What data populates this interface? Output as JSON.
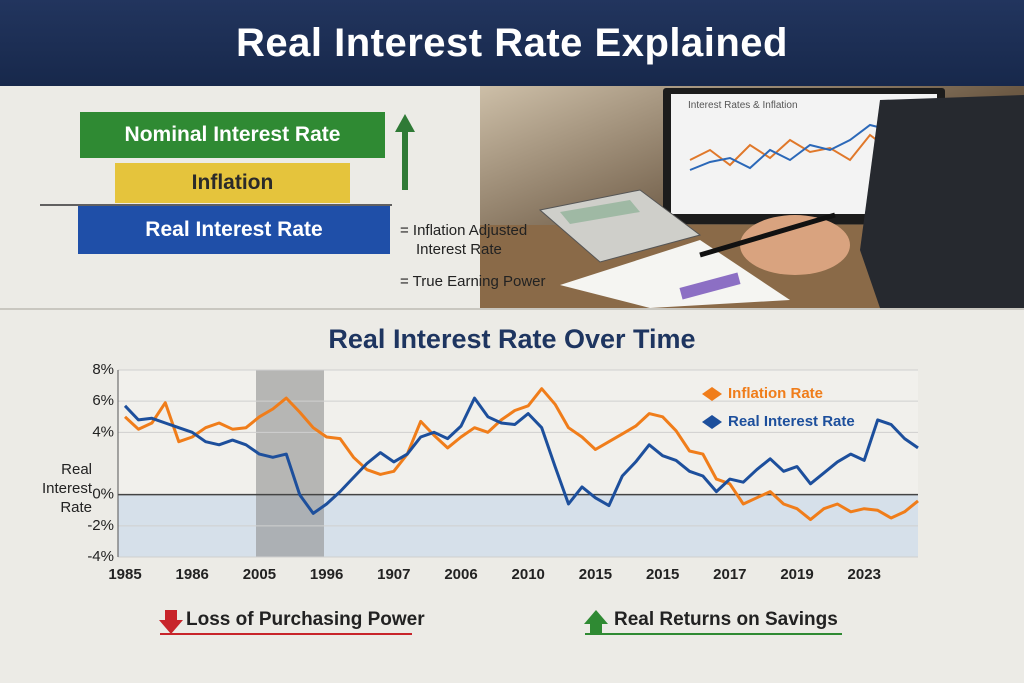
{
  "header": {
    "title": "Real Interest Rate Explained"
  },
  "diagram": {
    "layers": [
      "Nominal Interest Rate",
      "Inflation",
      "Real Interest Rate"
    ],
    "equations": [
      "= Inflation Adjusted Interest Rate",
      "= True Earning Power"
    ]
  },
  "photo": {
    "screen_title": "Interest Rates & Inflation"
  },
  "chart_data": {
    "type": "line",
    "title": "Real Interest Rate Over Time",
    "ylabel": "Real Interest Rate",
    "categories": [
      "1985",
      null,
      null,
      null,
      null,
      "1986",
      null,
      null,
      null,
      null,
      "2005",
      null,
      null,
      null,
      null,
      "1996",
      null,
      null,
      null,
      null,
      "1907",
      null,
      null,
      null,
      null,
      "2006",
      null,
      null,
      null,
      null,
      "2010",
      null,
      null,
      null,
      null,
      "2015",
      null,
      null,
      null,
      null,
      "2015",
      null,
      null,
      null,
      null,
      "2017",
      null,
      null,
      null,
      null,
      "2019",
      null,
      null,
      null,
      null,
      "2023",
      null,
      null,
      null,
      null
    ],
    "series": [
      {
        "name": "Inflation Rate",
        "color": "#f07d1a",
        "values": [
          5.0,
          4.2,
          4.6,
          5.9,
          3.4,
          3.7,
          4.3,
          4.6,
          4.2,
          4.3,
          5.0,
          5.5,
          6.2,
          5.3,
          4.3,
          3.7,
          3.6,
          2.4,
          1.6,
          1.3,
          1.5,
          2.6,
          4.7,
          3.8,
          3.0,
          3.7,
          4.3,
          4.0,
          4.8,
          5.4,
          5.7,
          6.8,
          5.8,
          4.3,
          3.7,
          2.9,
          3.4,
          3.9,
          4.4,
          5.2,
          5.0,
          4.1,
          2.8,
          2.6,
          1.0,
          0.7,
          -0.6,
          -0.2,
          0.2,
          -0.6,
          -0.9,
          -1.6,
          -0.9,
          -0.6,
          -1.1,
          -0.9,
          -1.0,
          -1.5,
          -1.1,
          -0.4
        ]
      },
      {
        "name": "Real Interest Rate",
        "color": "#1d4f9c",
        "values": [
          5.7,
          4.8,
          4.9,
          4.6,
          4.3,
          4.0,
          3.4,
          3.2,
          3.5,
          3.2,
          2.6,
          2.4,
          2.6,
          0.0,
          -1.2,
          -0.6,
          0.2,
          1.1,
          2.0,
          2.7,
          2.1,
          2.6,
          3.7,
          4.0,
          3.6,
          4.4,
          6.2,
          5.0,
          4.6,
          4.5,
          5.2,
          4.3,
          1.8,
          -0.6,
          0.5,
          -0.2,
          -0.7,
          1.2,
          2.1,
          3.2,
          2.5,
          2.2,
          1.5,
          1.2,
          0.2,
          1.0,
          0.8,
          1.6,
          2.3,
          1.5,
          1.8,
          0.7,
          1.4,
          2.1,
          2.6,
          2.2,
          4.8,
          4.5,
          3.6,
          3.0
        ]
      }
    ],
    "ylim": [
      -4,
      8
    ],
    "yticks": [
      {
        "value": 8,
        "label": "8%"
      },
      {
        "value": 6,
        "label": "6%"
      },
      {
        "value": 4,
        "label": "4%"
      },
      {
        "value": 0,
        "label": "0%"
      },
      {
        "value": -2,
        "label": "-2%"
      },
      {
        "value": -4,
        "label": "-4%"
      }
    ],
    "grid": true,
    "legend": "upper right"
  },
  "footer": {
    "left": "Loss of Purchasing Power",
    "right": "Real Returns on Savings"
  }
}
